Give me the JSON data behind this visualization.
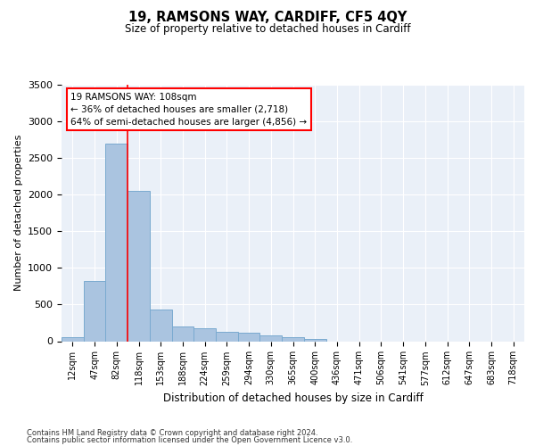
{
  "title1": "19, RAMSONS WAY, CARDIFF, CF5 4QY",
  "title2": "Size of property relative to detached houses in Cardiff",
  "xlabel": "Distribution of detached houses by size in Cardiff",
  "ylabel": "Number of detached properties",
  "categories": [
    "12sqm",
    "47sqm",
    "82sqm",
    "118sqm",
    "153sqm",
    "188sqm",
    "224sqm",
    "259sqm",
    "294sqm",
    "330sqm",
    "365sqm",
    "400sqm",
    "436sqm",
    "471sqm",
    "506sqm",
    "541sqm",
    "577sqm",
    "612sqm",
    "647sqm",
    "683sqm",
    "718sqm"
  ],
  "values": [
    50,
    820,
    2700,
    2050,
    430,
    200,
    175,
    130,
    110,
    80,
    60,
    30,
    0,
    0,
    0,
    0,
    0,
    0,
    0,
    0,
    0
  ],
  "bar_color": "#aac4e0",
  "bar_edge_color": "#7aaad0",
  "annotation_line1": "19 RAMSONS WAY: 108sqm",
  "annotation_line2": "← 36% of detached houses are smaller (2,718)",
  "annotation_line3": "64% of semi-detached houses are larger (4,856) →",
  "red_line_index": 2.5,
  "ylim": [
    0,
    3500
  ],
  "yticks": [
    0,
    500,
    1000,
    1500,
    2000,
    2500,
    3000,
    3500
  ],
  "background_color": "#eaf0f8",
  "grid_color": "#ffffff",
  "footer1": "Contains HM Land Registry data © Crown copyright and database right 2024.",
  "footer2": "Contains public sector information licensed under the Open Government Licence v3.0."
}
